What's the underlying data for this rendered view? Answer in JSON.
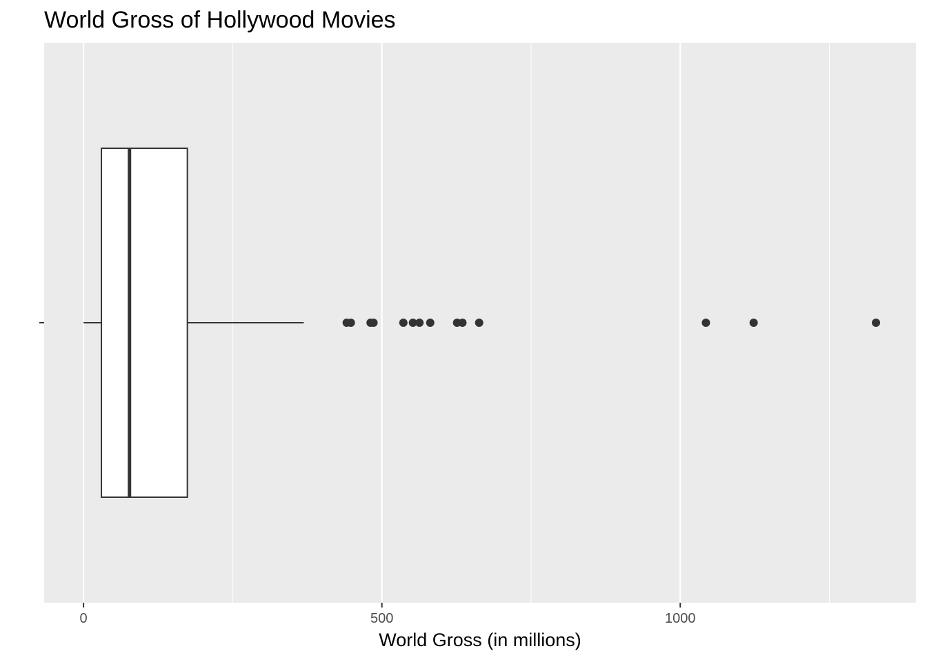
{
  "chart_data": {
    "type": "boxplot",
    "title": "World Gross of Hollywood Movies",
    "xlabel": "World Gross (in millions)",
    "ylabel": "",
    "orientation": "horizontal",
    "x_ticks": [
      0,
      500,
      1000
    ],
    "xlim": [
      -66,
      1395
    ],
    "grid": true,
    "colors": {
      "panel_background": "#ebebeb",
      "grid": "#ffffff",
      "box_fill": "#ffffff",
      "box_stroke": "#333333",
      "outlier": "#333333"
    },
    "box": {
      "whisker_low": 0,
      "q1": 30,
      "median": 77,
      "q3": 174,
      "whisker_high": 369
    },
    "outliers": [
      441,
      448,
      481,
      486,
      536,
      552,
      563,
      581,
      626,
      635,
      663,
      1043,
      1123,
      1328
    ]
  }
}
